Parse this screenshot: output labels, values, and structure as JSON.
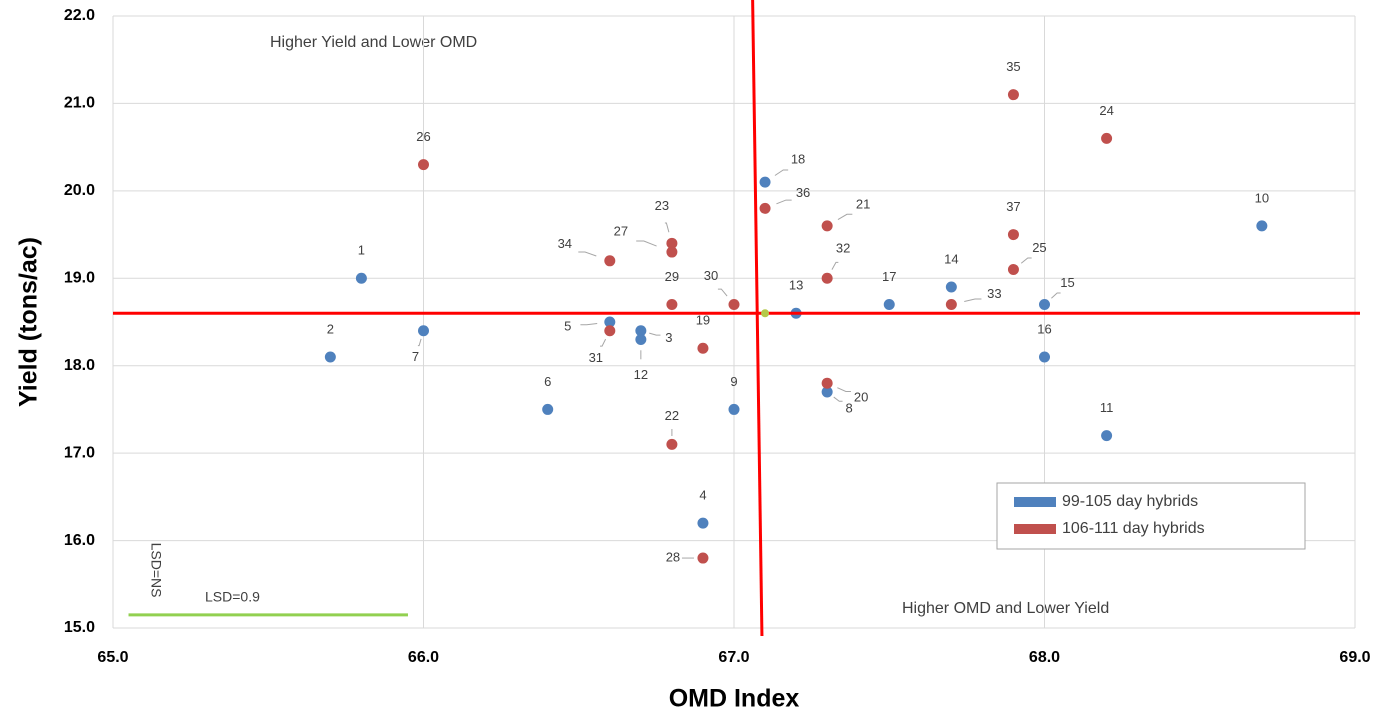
{
  "chart_data": {
    "type": "scatter",
    "xlabel": "OMD Index",
    "ylabel": "Yield (tons/ac)",
    "xlim": [
      65,
      69
    ],
    "ylim": [
      15,
      22
    ],
    "xticks": [
      {
        "value": 65,
        "label": "65.0"
      },
      {
        "value": 66,
        "label": "66.0"
      },
      {
        "value": 67,
        "label": "67.0"
      },
      {
        "value": 68,
        "label": "68.0"
      },
      {
        "value": 69,
        "label": "69.0"
      }
    ],
    "yticks": [
      {
        "value": 15,
        "label": "15.0"
      },
      {
        "value": 16,
        "label": "16.0"
      },
      {
        "value": 17,
        "label": "17.0"
      },
      {
        "value": 18,
        "label": "18.0"
      },
      {
        "value": 19,
        "label": "19.0"
      },
      {
        "value": 20,
        "label": "20.0"
      },
      {
        "value": 21,
        "label": "21.0"
      },
      {
        "value": 22,
        "label": "22.0"
      }
    ],
    "grid": true,
    "legend": "lower right",
    "series": [
      {
        "name": "99-105 day hybrids",
        "color": "#4f81bd",
        "labels": [
          "1",
          "2",
          "3",
          "4",
          "5",
          "6",
          "7",
          "8",
          "9",
          "10",
          "11",
          "12",
          "13",
          "14",
          "15",
          "16",
          "17",
          "18"
        ],
        "x": [
          65.8,
          65.7,
          66.7,
          66.9,
          66.6,
          66.4,
          66.0,
          67.3,
          67.0,
          68.7,
          68.2,
          66.7,
          67.2,
          67.7,
          68.0,
          68.0,
          67.5,
          67.1
        ],
        "values": [
          19.0,
          18.1,
          18.4,
          16.2,
          18.5,
          17.5,
          18.4,
          17.7,
          17.5,
          19.6,
          17.2,
          18.3,
          18.6,
          18.9,
          18.7,
          18.1,
          18.7,
          20.1
        ]
      },
      {
        "name": "106-111 day hybrids",
        "color": "#c0504d",
        "labels": [
          "19",
          "20",
          "21",
          "22",
          "23",
          "24",
          "25",
          "26",
          "27",
          "28",
          "29",
          "30",
          "31",
          "32",
          "33",
          "34",
          "35",
          "36",
          "37"
        ],
        "x": [
          66.9,
          67.3,
          67.3,
          66.8,
          66.8,
          68.2,
          67.9,
          66.0,
          66.8,
          66.9,
          66.8,
          67.0,
          66.6,
          67.3,
          67.7,
          66.6,
          67.9,
          67.1,
          67.9
        ],
        "values": [
          18.2,
          17.8,
          19.6,
          17.1,
          19.4,
          20.6,
          19.1,
          20.3,
          19.3,
          15.8,
          18.7,
          18.7,
          18.4,
          19.0,
          18.7,
          19.2,
          21.1,
          19.8,
          19.5
        ]
      }
    ],
    "reference_line_color": "#ff0000",
    "hline": 18.6,
    "vline": {
      "x_top": 67.06,
      "x_bottom": 67.09
    },
    "mean_point": {
      "x": 67.1,
      "y": 18.6,
      "color": "#b4c94a"
    },
    "lsd": {
      "label": "LSD=0.9",
      "x": [
        65.05,
        65.95
      ],
      "y": 15.15,
      "color": "#92d050"
    },
    "lsd_vertical_label": "LSD=NS",
    "annotations": [
      "Higher Yield and Lower OMD",
      "Higher OMD and Lower Yield"
    ]
  }
}
